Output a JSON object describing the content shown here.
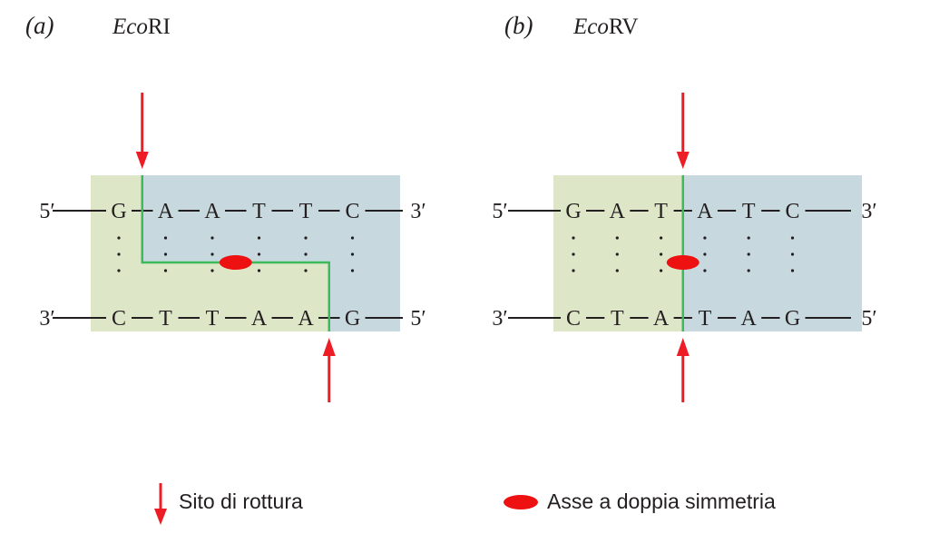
{
  "panels": [
    {
      "id": "a",
      "label": "(a)",
      "enzyme_italic": "Eco",
      "enzyme_suffix": "RI",
      "top_end_left": "5′",
      "top_end_right": "3′",
      "bottom_end_left": "3′",
      "bottom_end_right": "5′",
      "top_strand": [
        "G",
        "A",
        "A",
        "T",
        "T",
        "C"
      ],
      "bottom_strand": [
        "C",
        "T",
        "T",
        "A",
        "A",
        "G"
      ],
      "top_cut_after_index": 0,
      "bottom_cut_after_index": 4
    },
    {
      "id": "b",
      "label": "(b)",
      "enzyme_italic": "Eco",
      "enzyme_suffix": "RV",
      "top_end_left": "5′",
      "top_end_right": "3′",
      "bottom_end_left": "3′",
      "bottom_end_right": "5′",
      "top_strand": [
        "G",
        "A",
        "T",
        "A",
        "T",
        "C"
      ],
      "bottom_strand": [
        "C",
        "T",
        "A",
        "T",
        "A",
        "G"
      ],
      "top_cut_after_index": 2,
      "bottom_cut_after_index": 2
    }
  ],
  "legend": {
    "cleavage_label": "Sito di rottura",
    "symmetry_label": "Asse a doppia simmetria"
  },
  "colors": {
    "left_box": "#dde6c6",
    "right_box": "#c7d9de",
    "cut_line": "#3dbb5a",
    "arrow": "#ee1c25",
    "symmetry_marker": "#ee1111",
    "strand_text": "#231f20"
  }
}
